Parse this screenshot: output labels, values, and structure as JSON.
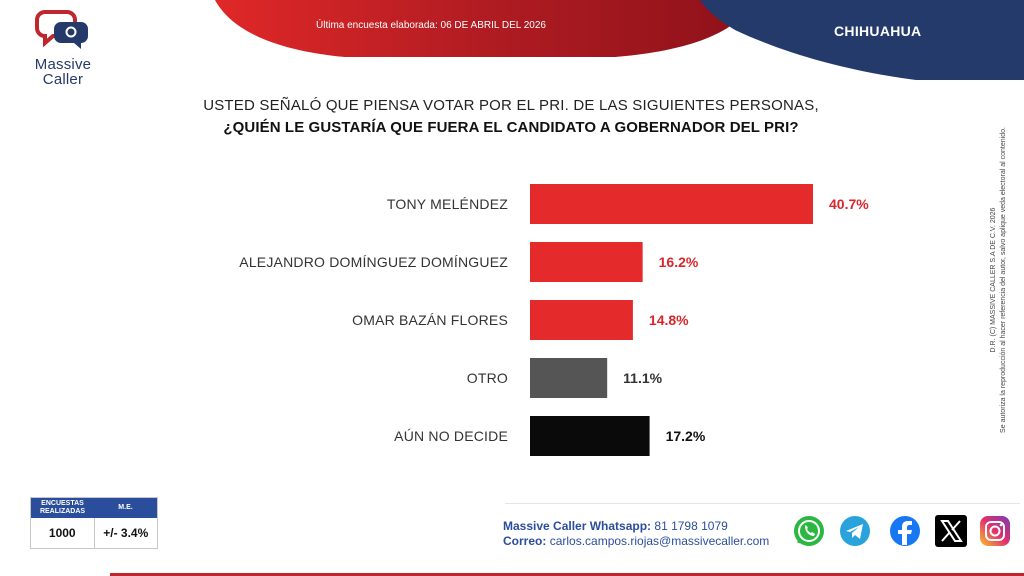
{
  "brand": {
    "name_line1": "Massive",
    "name_line2": "Caller"
  },
  "header": {
    "survey_date": "Última encuesta elaborada: 06 DE ABRIL DEL 2026",
    "region": "CHIHUAHUA"
  },
  "question": {
    "line1": "USTED SEÑALÓ QUE PIENSA VOTAR POR EL PRI. DE LAS SIGUIENTES PERSONAS,",
    "line2": "¿QUIÉN LE GUSTARÍA QUE FUERA EL CANDIDATO A GOBERNADOR DEL PRI?"
  },
  "chart_data": {
    "type": "bar",
    "orientation": "horizontal",
    "categories": [
      "TONY MELÉNDEZ",
      "ALEJANDRO DOMÍNGUEZ DOMÍNGUEZ",
      "OMAR BAZÁN FLORES",
      "OTRO",
      "AÚN NO DECIDE"
    ],
    "values": [
      40.7,
      16.2,
      14.8,
      11.1,
      17.2
    ],
    "value_labels": [
      "40.7%",
      "16.2%",
      "14.8%",
      "11.1%",
      "17.2%"
    ],
    "bar_colors": [
      "#e42a2a",
      "#e42a2a",
      "#e42a2a",
      "#555555",
      "#0a0a0a"
    ],
    "label_colors": [
      "#d9262b",
      "#d9262b",
      "#d9262b",
      "#333333",
      "#111111"
    ],
    "xlim": [
      0,
      45
    ],
    "grid": false,
    "title": "",
    "xlabel": "",
    "ylabel": ""
  },
  "side_note": {
    "line1": "D.R. (C) MASSIVE CALLER S.A DE C.V. 2026",
    "line2": "Se autoriza la reproducción al hacer referencia del autor, salvo aplique veda electoral al contenido."
  },
  "stats": {
    "surveys_header": "ENCUESTAS REALIZADAS",
    "margin_header": "M.E.",
    "surveys_value": "1000",
    "margin_value": "+/- 3.4%"
  },
  "contact": {
    "whatsapp_label": "Massive Caller Whatsapp:",
    "whatsapp_number": "81 1798 1079",
    "email_label": "Correo:",
    "email": "carlos.campos.riojas@massivecaller.com"
  },
  "social_icons": [
    "whatsapp-icon",
    "telegram-icon",
    "facebook-icon",
    "x-icon",
    "instagram-icon"
  ],
  "colors": {
    "brand_red": "#c0262d",
    "brand_blue": "#243a6b",
    "accent_blue": "#2a4e9c"
  }
}
